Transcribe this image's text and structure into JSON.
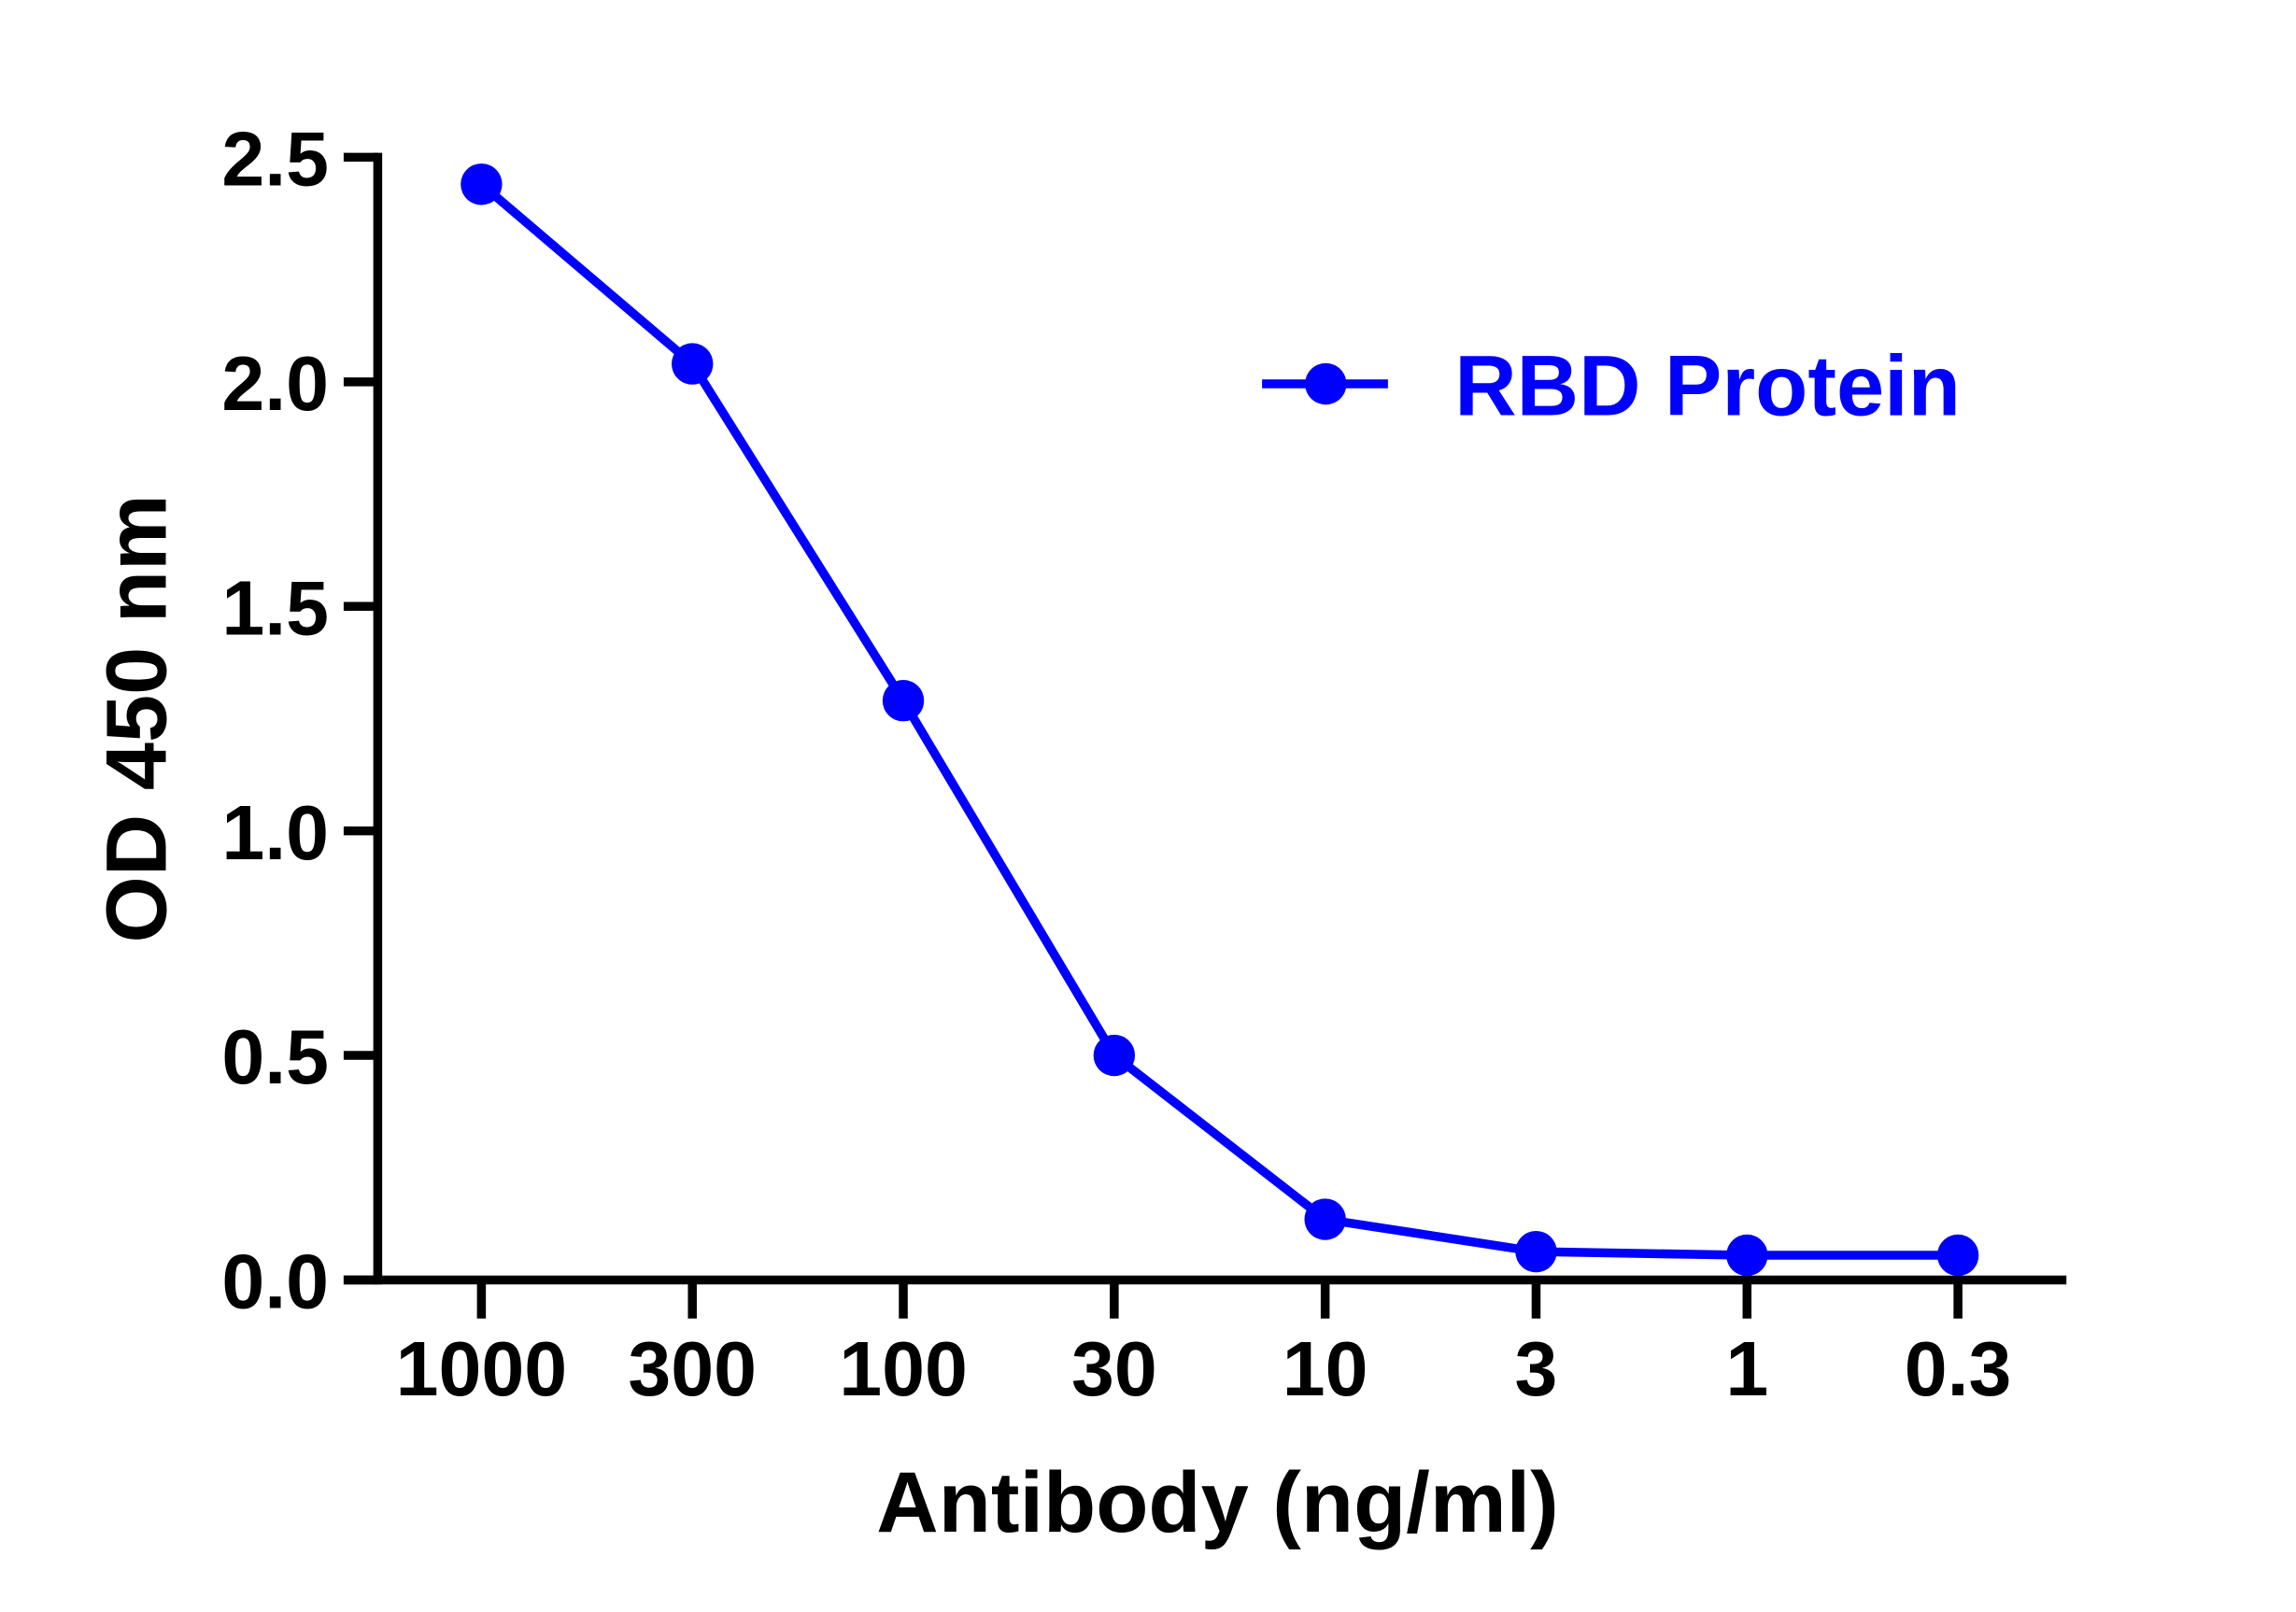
{
  "chart_data": {
    "type": "line",
    "title": "",
    "xlabel": "Antibody (ng/ml)",
    "ylabel": "OD 450 nm",
    "categories": [
      "1000",
      "300",
      "100",
      "30",
      "10",
      "3",
      "1",
      "0.3"
    ],
    "yticks": [
      "0.0",
      "0.5",
      "1.0",
      "1.5",
      "2.0",
      "2.5"
    ],
    "ylim": [
      0,
      2.5
    ],
    "grid": false,
    "legend_position": "top-right",
    "series": [
      {
        "name": "RBD Protein",
        "color": "#0000ff",
        "marker": "circle",
        "values": [
          2.44,
          2.04,
          1.29,
          0.5,
          0.135,
          0.063,
          0.055,
          0.055
        ]
      }
    ]
  }
}
